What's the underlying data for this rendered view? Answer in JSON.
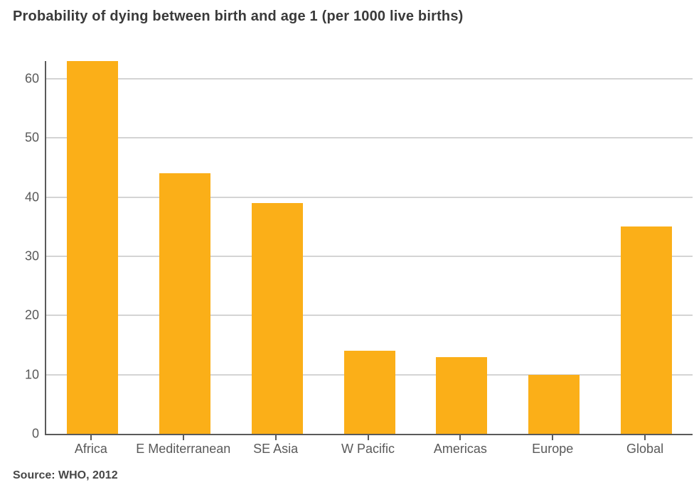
{
  "header": {
    "title": "Probability of dying between birth and age 1 (per 1000 live births)"
  },
  "footer": {
    "source": "Source: WHO, 2012"
  },
  "colors": {
    "bar": "#fbaf18",
    "grid": "#d4d4d4",
    "axis": "#5a5a5a",
    "tick_label": "#595959",
    "title_text": "#3a3a3a"
  },
  "chart_data": {
    "type": "bar",
    "categories": [
      "Africa",
      "E Mediterranean",
      "SE Asia",
      "W Pacific",
      "Americas",
      "Europe",
      "Global"
    ],
    "values": [
      63,
      44,
      39,
      14,
      13,
      10,
      35
    ],
    "title": "Probability of dying between birth and age 1 (per 1000 live births)",
    "xlabel": "",
    "ylabel": "",
    "ylim": [
      0,
      63
    ],
    "yticks": [
      0,
      10,
      20,
      30,
      40,
      50,
      60
    ],
    "grid": "horizontal",
    "legend": "none",
    "bar_color": "#fbaf18",
    "source": "Source: WHO, 2012"
  }
}
